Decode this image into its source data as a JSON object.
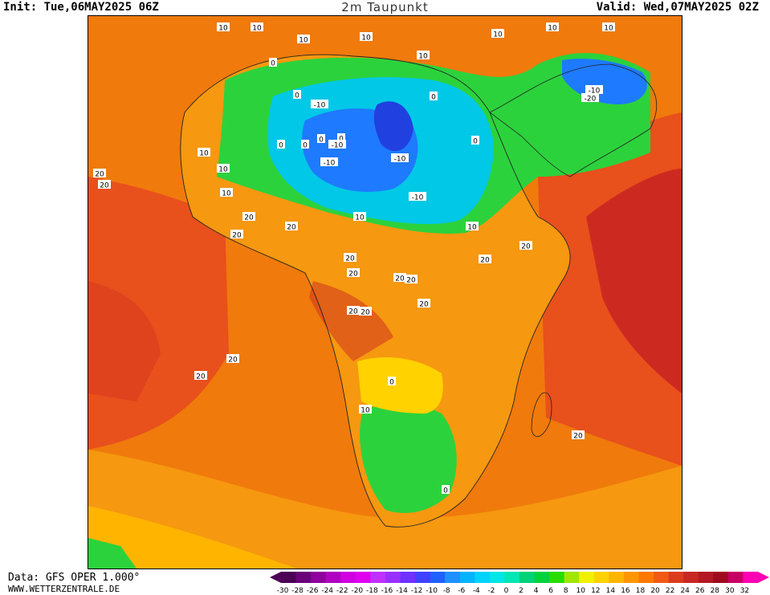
{
  "header": {
    "init": "Init: Tue,06MAY2025 06Z",
    "title": "2m Taupunkt",
    "valid": "Valid: Wed,07MAY2025 02Z"
  },
  "footer": {
    "source": "Data: GFS OPER 1.000°",
    "site": "WWW.WETTERZENTRALE.DE"
  },
  "legend": {
    "ticks": [
      "-30",
      "-28",
      "-26",
      "-24",
      "-22",
      "-20",
      "-18",
      "-16",
      "-14",
      "-12",
      "-10",
      "-8",
      "-6",
      "-4",
      "-2",
      "0",
      "2",
      "4",
      "6",
      "8",
      "10",
      "12",
      "14",
      "16",
      "18",
      "20",
      "22",
      "24",
      "26",
      "28",
      "30",
      "32"
    ],
    "colors": [
      "#4b0055",
      "#6a007a",
      "#8f009e",
      "#b000c0",
      "#d000e0",
      "#e000f0",
      "#c030ff",
      "#9a30ff",
      "#7030ff",
      "#4040ff",
      "#2060ff",
      "#1e90ff",
      "#00b4ff",
      "#00d2ff",
      "#00e6e6",
      "#00e6b4",
      "#00d278",
      "#00d23c",
      "#28dc00",
      "#a0e600",
      "#f0f000",
      "#ffd200",
      "#ffb400",
      "#ff9600",
      "#ff7800",
      "#f05a14",
      "#dc3c1e",
      "#c82823",
      "#b41923",
      "#a00a1e",
      "#c80064",
      "#ff00b4"
    ]
  },
  "map": {
    "colors": {
      "ocean_warm": "#e8501c",
      "ocean_hot": "#cc2a20",
      "ocean_mild": "#f07a0c",
      "land_orange": "#f69810",
      "land_amber": "#ffb400",
      "land_yellow": "#ffd200",
      "green": "#2cd23c",
      "teal": "#00dca0",
      "cyan": "#00c8e6",
      "blue": "#1e7aff",
      "deep_blue": "#2040e0"
    },
    "labels": [
      "10",
      "10",
      "10",
      "10",
      "10",
      "10",
      "10",
      "10",
      "10",
      "10",
      "10",
      "10",
      "10",
      "10",
      "0",
      "0",
      "0",
      "0",
      "0",
      "0",
      "0",
      "0",
      "0",
      "0",
      "-10",
      "-10",
      "-10",
      "-10",
      "-10",
      "-10",
      "-20",
      "20",
      "20",
      "20",
      "20",
      "20",
      "20",
      "20",
      "20",
      "20",
      "20",
      "20",
      "20",
      "20",
      "20",
      "20",
      "20",
      "20"
    ]
  }
}
